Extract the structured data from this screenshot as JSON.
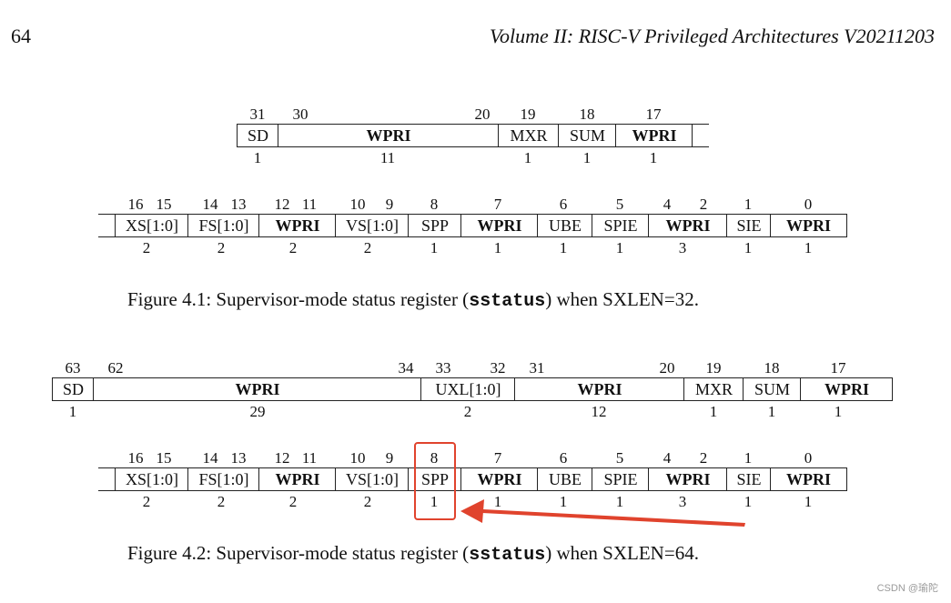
{
  "header": {
    "page_number": "64",
    "running_title": "Volume II: RISC-V Privileged Architectures V20211203"
  },
  "figures": [
    {
      "caption_pre": "Figure 4.1: Supervisor-mode status register (",
      "caption_code": "sstatus",
      "caption_post": ") when SXLEN=32.",
      "rows": [
        {
          "headers": [
            "31",
            "30",
            "20",
            "19",
            "18",
            "17"
          ],
          "fields": [
            {
              "label": "SD"
            },
            {
              "label": "WPRI",
              "bold": true
            },
            {
              "label": "MXR"
            },
            {
              "label": "SUM"
            },
            {
              "label": "WPRI",
              "bold": true
            },
            {
              "label": ""
            }
          ],
          "widths": [
            "1",
            "11",
            "1",
            "1",
            "1"
          ]
        },
        {
          "headers": [
            "16",
            "15",
            "14",
            "13",
            "12",
            "11",
            "10",
            "9",
            "8",
            "7",
            "6",
            "5",
            "4",
            "2",
            "1",
            "0"
          ],
          "fields": [
            {
              "label": ""
            },
            {
              "label": "XS[1:0]"
            },
            {
              "label": "FS[1:0]"
            },
            {
              "label": "WPRI",
              "bold": true
            },
            {
              "label": "VS[1:0]"
            },
            {
              "label": "SPP"
            },
            {
              "label": "WPRI",
              "bold": true
            },
            {
              "label": "UBE"
            },
            {
              "label": "SPIE"
            },
            {
              "label": "WPRI",
              "bold": true
            },
            {
              "label": "SIE"
            },
            {
              "label": "WPRI",
              "bold": true
            }
          ],
          "widths": [
            "2",
            "2",
            "2",
            "2",
            "1",
            "1",
            "1",
            "1",
            "3",
            "1",
            "1"
          ]
        }
      ]
    },
    {
      "caption_pre": "Figure 4.2: Supervisor-mode status register (",
      "caption_code": "sstatus",
      "caption_post": ") when SXLEN=64.",
      "rows": [
        {
          "headers": [
            "63",
            "62",
            "34",
            "33",
            "32",
            "31",
            "20",
            "19",
            "18",
            "17"
          ],
          "fields": [
            {
              "label": "SD"
            },
            {
              "label": "WPRI",
              "bold": true
            },
            {
              "label": "UXL[1:0]"
            },
            {
              "label": "WPRI",
              "bold": true
            },
            {
              "label": "MXR"
            },
            {
              "label": "SUM"
            },
            {
              "label": "WPRI",
              "bold": true
            },
            {
              "label": ""
            }
          ],
          "widths": [
            "1",
            "29",
            "2",
            "12",
            "1",
            "1",
            "1"
          ]
        },
        {
          "headers": [
            "16",
            "15",
            "14",
            "13",
            "12",
            "11",
            "10",
            "9",
            "8",
            "7",
            "6",
            "5",
            "4",
            "2",
            "1",
            "0"
          ],
          "fields": [
            {
              "label": ""
            },
            {
              "label": "XS[1:0]"
            },
            {
              "label": "FS[1:0]"
            },
            {
              "label": "WPRI",
              "bold": true
            },
            {
              "label": "VS[1:0]"
            },
            {
              "label": "SPP"
            },
            {
              "label": "WPRI",
              "bold": true
            },
            {
              "label": "UBE"
            },
            {
              "label": "SPIE"
            },
            {
              "label": "WPRI",
              "bold": true
            },
            {
              "label": "SIE"
            },
            {
              "label": "WPRI",
              "bold": true
            }
          ],
          "widths": [
            "2",
            "2",
            "2",
            "2",
            "1",
            "1",
            "1",
            "1",
            "3",
            "1",
            "1"
          ]
        }
      ]
    }
  ],
  "annotation": {
    "highlighted_field": "SPP",
    "highlight_color": "#e0432d"
  },
  "watermark": "CSDN @瑜陀"
}
